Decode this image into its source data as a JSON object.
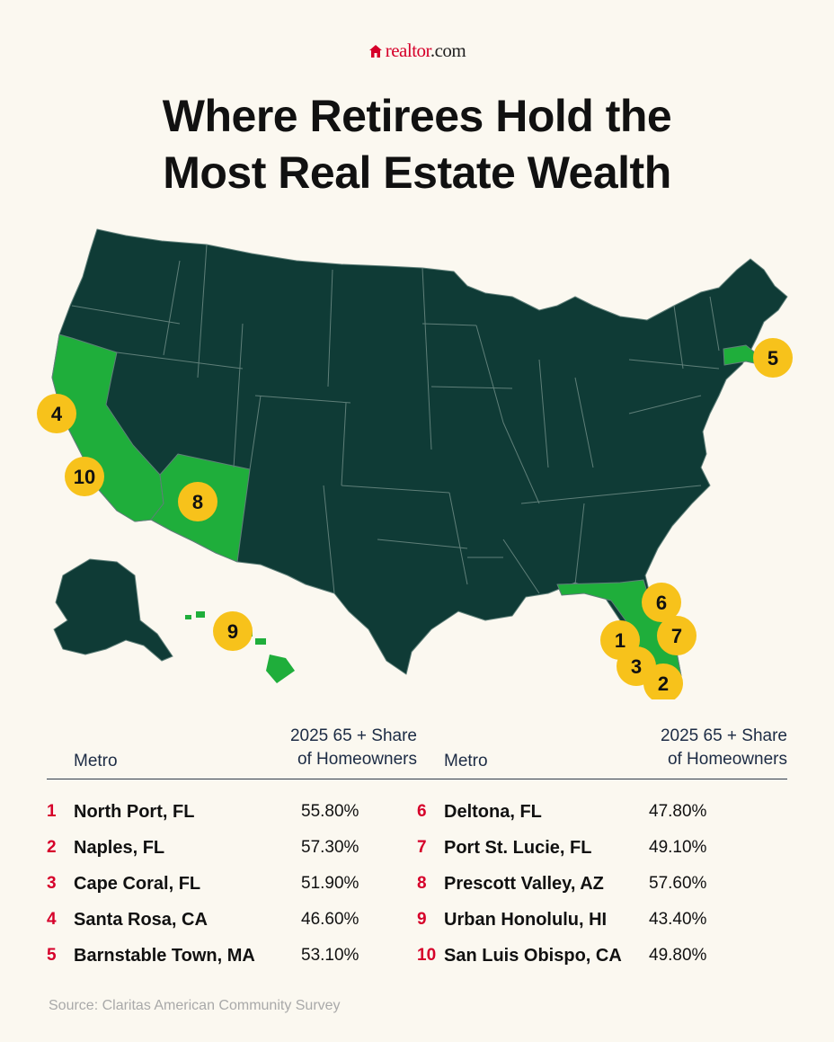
{
  "brand": {
    "logo_icon": "house-icon",
    "name_part1": "realtor",
    "name_part2": ".com"
  },
  "title": {
    "line1": "Where Retirees Hold the",
    "line2": "Most Real Estate Wealth"
  },
  "map": {
    "colors": {
      "base": "#0f3b36",
      "highlight": "#1fae3b",
      "border": "#5f7f79",
      "marker": "#f7c21b",
      "background": "#fbf8f0"
    },
    "highlighted_states": [
      "CA",
      "AZ",
      "FL",
      "MA",
      "HI"
    ],
    "markers": [
      {
        "rank": "1",
        "state": "FL"
      },
      {
        "rank": "2",
        "state": "FL"
      },
      {
        "rank": "3",
        "state": "FL"
      },
      {
        "rank": "4",
        "state": "CA"
      },
      {
        "rank": "5",
        "state": "MA"
      },
      {
        "rank": "6",
        "state": "FL"
      },
      {
        "rank": "7",
        "state": "FL"
      },
      {
        "rank": "8",
        "state": "AZ"
      },
      {
        "rank": "9",
        "state": "HI"
      },
      {
        "rank": "10",
        "state": "CA"
      }
    ]
  },
  "table": {
    "header_metro": "Metro",
    "header_share_line1": "2025 65 + Share",
    "header_share_line2": "of Homeowners",
    "left": [
      {
        "rank": "1",
        "metro": "North Port, FL",
        "share": "55.80%"
      },
      {
        "rank": "2",
        "metro": "Naples, FL",
        "share": "57.30%"
      },
      {
        "rank": "3",
        "metro": "Cape Coral, FL",
        "share": "51.90%"
      },
      {
        "rank": "4",
        "metro": "Santa Rosa, CA",
        "share": "46.60%"
      },
      {
        "rank": "5",
        "metro": "Barnstable Town, MA",
        "share": "53.10%"
      }
    ],
    "right": [
      {
        "rank": "6",
        "metro": "Deltona, FL",
        "share": "47.80%"
      },
      {
        "rank": "7",
        "metro": "Port St. Lucie, FL",
        "share": "49.10%"
      },
      {
        "rank": "8",
        "metro": "Prescott Valley, AZ",
        "share": "57.60%"
      },
      {
        "rank": "9",
        "metro": "Urban Honolulu, HI",
        "share": "43.40%"
      },
      {
        "rank": "10",
        "metro": "San Luis Obispo, CA",
        "share": "49.80%"
      }
    ]
  },
  "source": "Source:  Claritas American Community Survey"
}
